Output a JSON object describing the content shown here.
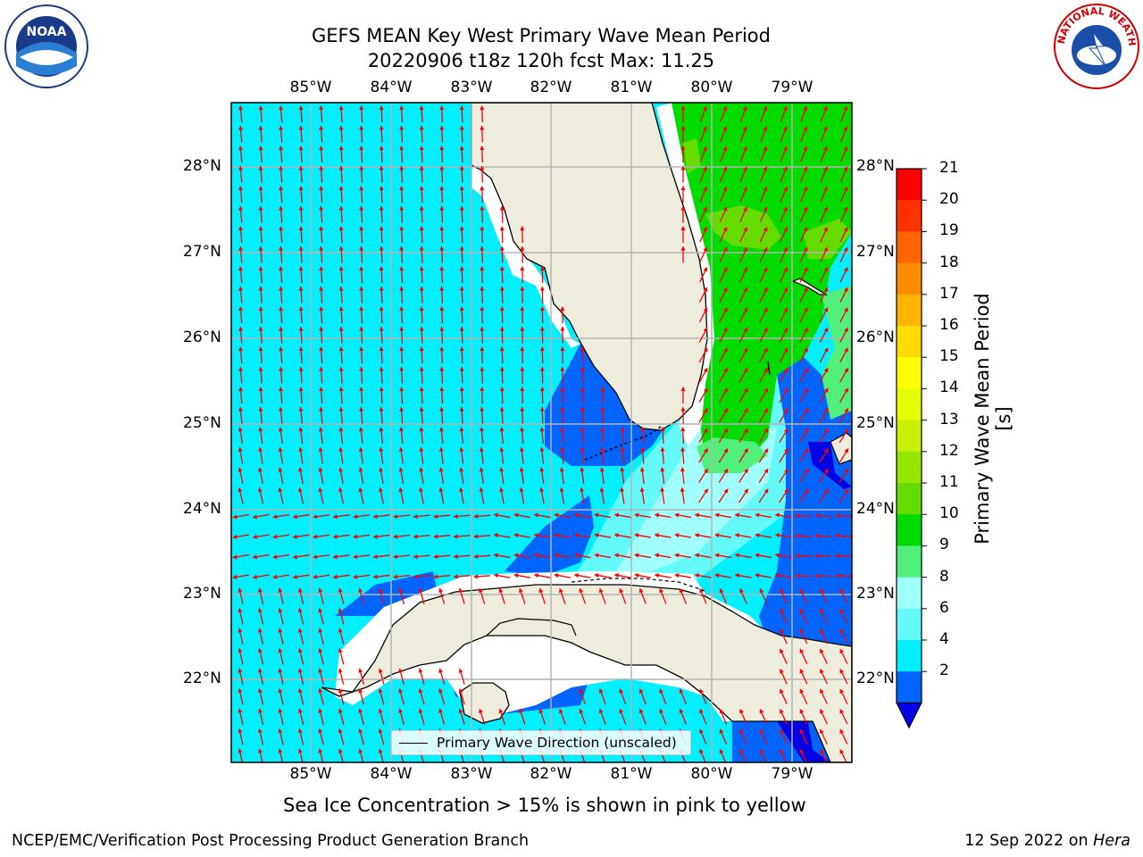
{
  "header": {
    "title_line1": "GEFS MEAN Key West Primary Wave Mean Period",
    "title_line2": "20220906 t18z 120h fcst   Max: 11.25"
  },
  "logos": {
    "left": {
      "text": "NOAA",
      "icon": "noaa-logo-icon"
    },
    "right": {
      "text": "NATIONAL WEATHER SERVICE",
      "icon": "nws-logo-icon"
    }
  },
  "axes": {
    "longitude_labels": [
      "85°W",
      "84°W",
      "83°W",
      "82°W",
      "81°W",
      "80°W",
      "79°W"
    ],
    "latitude_labels": [
      "28°N",
      "27°N",
      "26°N",
      "25°N",
      "24°N",
      "23°N",
      "22°N"
    ]
  },
  "legend": {
    "entry": "Primary Wave Direction (unscaled)"
  },
  "colorbar": {
    "label": "Primary Wave Mean Period [s]",
    "ticks": [
      "21",
      "20",
      "19",
      "18",
      "17",
      "16",
      "15",
      "14",
      "13",
      "12",
      "11",
      "10",
      "9",
      "8",
      "6",
      "4",
      "2"
    ],
    "colors": [
      "#fe0000",
      "#ff3200",
      "#ff6400",
      "#ff8c00",
      "#ffb400",
      "#ffdc00",
      "#ffff00",
      "#e6ff00",
      "#c8f000",
      "#96e600",
      "#64dc00",
      "#00dc00",
      "#50f07a",
      "#a0fffa",
      "#64fafa",
      "#00f0ff",
      "#0064ff"
    ],
    "min_arrow_color": "#0000e6"
  },
  "caption": "Sea Ice Concentration > 15% is shown in pink to yellow",
  "footer": {
    "left": "NCEP/EMC/Verification Post Processing Product Generation Branch",
    "right_date": "12 Sep 2022 on",
    "right_host": "Hera"
  },
  "colors": {
    "land": "#eeecdc",
    "ocean_4_6": "#00f0ff",
    "ocean_2_4": "#0064ff",
    "ocean_lt2": "#0000e6",
    "ocean_6_8": "#64fafa",
    "ocean_8_9": "#a0fffa",
    "ocean_10_11": "#00dc00",
    "ocean_9_10": "#50f07a",
    "ocean_11_12": "#64dc00",
    "arrow": "#ff0000",
    "grid": "#b4b4b4"
  }
}
